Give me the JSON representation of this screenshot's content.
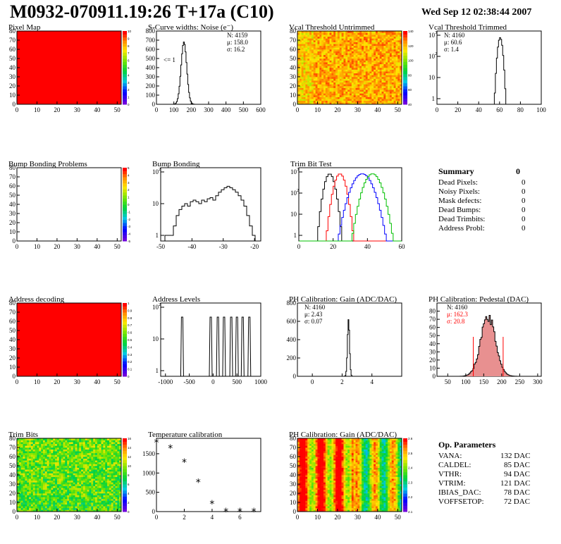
{
  "header": {
    "title": "M0932-070911.19:26 T+17a (C10)",
    "date": "Wed Sep 12 02:38:44 2007"
  },
  "colors": {
    "frame": "#000000",
    "red": "#ff0000",
    "green": "#00c000",
    "blue": "#0000ff",
    "pedestal_fill": "#e89090"
  },
  "chart_data": [
    {
      "id": "pixel_map",
      "type": "heatmap",
      "title": "Pixel Map",
      "xticks": [
        0,
        10,
        20,
        30,
        40,
        50
      ],
      "yticks": [
        0,
        10,
        20,
        30,
        40,
        50,
        60,
        70,
        80
      ],
      "colorbar_ticks": [
        "0",
        "1",
        "2",
        "3",
        "4",
        "5",
        "6",
        "7",
        "8",
        "9",
        "10"
      ],
      "uniform_value": 10
    },
    {
      "id": "scurve",
      "type": "histogram",
      "title": "S-Curve widths: Noise (e⁻)",
      "xticks": [
        "0",
        "100",
        "200",
        "300",
        "400",
        "500",
        "600"
      ],
      "xlim": [
        0,
        600
      ],
      "stats": [
        "N: 4159",
        "μ: 158.0",
        "σ: 16.2"
      ],
      "annotation": "<= 1",
      "peak": {
        "mean": 158,
        "sigma": 16.2,
        "height": 680
      },
      "ylim": [
        0,
        800
      ],
      "yticks": [
        "0",
        "100",
        "200",
        "300",
        "400",
        "500",
        "600",
        "700",
        "800"
      ]
    },
    {
      "id": "vcal_untrimmed",
      "type": "heatmap",
      "title": "Vcal Threshold Untrimmed",
      "xticks": [
        0,
        10,
        20,
        30,
        40,
        50
      ],
      "yticks": [
        0,
        10,
        20,
        30,
        40,
        50,
        60,
        70,
        80
      ],
      "colorbar_ticks": [
        "40",
        "60",
        "80",
        "100",
        "120",
        "140"
      ]
    },
    {
      "id": "vcal_trimmed",
      "type": "histogram",
      "title": "Vcal Threshold Trimmed",
      "yscale": "log",
      "xticks": [
        "0",
        "20",
        "40",
        "60",
        "80",
        "100"
      ],
      "xlim": [
        0,
        100
      ],
      "stats": [
        "N: 4160",
        "μ: 60.6",
        "σ: 1.4"
      ],
      "peak": {
        "mean": 60.6,
        "sigma": 1.4,
        "height": 1500
      }
    },
    {
      "id": "bump_problems",
      "type": "heatmap",
      "title": "Bump Bonding Problems",
      "xticks": [
        0,
        10,
        20,
        30,
        40,
        50
      ],
      "yticks": [
        0,
        10,
        20,
        30,
        40,
        50,
        60,
        70,
        80
      ],
      "colorbar_ticks": [
        "-5",
        "-4",
        "-3",
        "-2",
        "-1",
        "0",
        "1",
        "2",
        "3",
        "4",
        "5"
      ],
      "empty": true
    },
    {
      "id": "bump_bonding",
      "type": "histogram",
      "title": "Bump Bonding",
      "yscale": "log",
      "xticks": [
        "-50",
        "-40",
        "-30",
        "-20"
      ],
      "xlim": [
        -50,
        -18
      ],
      "values": [
        1,
        1,
        1,
        3,
        10,
        20,
        30,
        40,
        30,
        50,
        60,
        50,
        40,
        60,
        50,
        70,
        80,
        60,
        100,
        150,
        200,
        250,
        300,
        250,
        200,
        150,
        100,
        60,
        30,
        10,
        3,
        1
      ]
    },
    {
      "id": "trim_bit_test",
      "type": "line",
      "title": "Trim Bit Test",
      "yscale": "log",
      "xticks": [
        "0",
        "20",
        "40",
        "60"
      ],
      "xlim": [
        0,
        60
      ],
      "series": [
        {
          "color": "#000000",
          "mean": 18,
          "sigma": 1.8
        },
        {
          "color": "#ff0000",
          "mean": 24,
          "sigma": 2
        },
        {
          "color": "#0000ff",
          "mean": 37,
          "sigma": 3.5
        },
        {
          "color": "#00c000",
          "mean": 43,
          "sigma": 3
        }
      ]
    },
    {
      "id": "summary",
      "type": "table",
      "title": "Summary",
      "title_value": "0",
      "rows": [
        [
          "Dead Pixels:",
          "0"
        ],
        [
          "Noisy Pixels:",
          "0"
        ],
        [
          "Mask defects:",
          "0"
        ],
        [
          "Dead Bumps:",
          "0"
        ],
        [
          "Dead Trimbits:",
          "0"
        ],
        [
          "Address Probl:",
          "0"
        ]
      ]
    },
    {
      "id": "address_decoding",
      "type": "heatmap",
      "title": "Address decoding",
      "xticks": [
        0,
        10,
        20,
        30,
        40,
        50
      ],
      "yticks": [
        0,
        10,
        20,
        30,
        40,
        50,
        60,
        70,
        80
      ],
      "colorbar_ticks": [
        "0",
        "0.1",
        "0.2",
        "0.3",
        "0.4",
        "0.5",
        "0.6",
        "0.7",
        "0.8",
        "0.9",
        "1"
      ],
      "uniform_value": 1
    },
    {
      "id": "address_levels",
      "type": "histogram",
      "title": "Address Levels",
      "yscale": "log",
      "xticks": [
        "-1000",
        "-500",
        "0",
        "500",
        "1000"
      ],
      "xlim": [
        -1100,
        1000
      ],
      "peaks": [
        -650,
        -50,
        100,
        230,
        380,
        500,
        620,
        760
      ]
    },
    {
      "id": "ph_gain",
      "type": "histogram",
      "title": "PH Calibration: Gain (ADC/DAC)",
      "xticks": [
        "0",
        "2",
        "4"
      ],
      "xlim": [
        -1,
        6
      ],
      "ylim": [
        0,
        800
      ],
      "yticks": [
        "0",
        "200",
        "400",
        "600",
        "800"
      ],
      "stats": [
        "N: 4160",
        "μ: 2.43",
        "σ: 0.07"
      ],
      "peak": {
        "mean": 2.43,
        "sigma": 0.07,
        "height": 620
      }
    },
    {
      "id": "ph_pedestal",
      "type": "histogram",
      "title": "PH Calibration: Pedestal (DAC)",
      "xticks": [
        "50",
        "100",
        "150",
        "200",
        "250",
        "300"
      ],
      "xlim": [
        20,
        310
      ],
      "ylim": [
        0,
        90
      ],
      "yticks": [
        "0",
        "10",
        "20",
        "30",
        "40",
        "50",
        "60",
        "70",
        "80"
      ],
      "stats": [
        "N: 4160",
        "μ: 162.3",
        "σ: 20.8"
      ],
      "peak": {
        "mean": 162.3,
        "sigma": 20.8,
        "height": 72
      },
      "cut_lines": [
        121,
        204
      ]
    },
    {
      "id": "trim_bits",
      "type": "heatmap",
      "title": "Trim Bits",
      "xticks": [
        0,
        10,
        20,
        30,
        40,
        50
      ],
      "yticks": [
        0,
        10,
        20,
        30,
        40,
        50,
        60,
        70,
        80
      ],
      "colorbar_ticks": [
        "0",
        "2",
        "4",
        "6",
        "8",
        "10",
        "12",
        "14",
        "16"
      ]
    },
    {
      "id": "temp_calibration",
      "type": "scatter",
      "title": "Temperature calibration",
      "xticks": [
        "0",
        "2",
        "4",
        "6"
      ],
      "xlim": [
        0,
        7.5
      ],
      "ylim": [
        0,
        1900
      ],
      "yticks": [
        "0",
        "500",
        "1000",
        "1500"
      ],
      "x": [
        0,
        1,
        2,
        3,
        4,
        5,
        6,
        7
      ],
      "y": [
        1790,
        1640,
        1280,
        760,
        200,
        0,
        0,
        0
      ]
    },
    {
      "id": "ph_gain_map",
      "type": "heatmap",
      "title": "PH Calibration: Gain (ADC/DAC)",
      "xticks": [
        0,
        10,
        20,
        30,
        40,
        50
      ],
      "yticks": [
        0,
        10,
        20,
        30,
        40,
        50,
        60,
        70,
        80
      ],
      "colorbar_ticks": [
        "2.1",
        "2.2",
        "2.3",
        "2.4",
        "2.5",
        "2.6"
      ]
    },
    {
      "id": "op_parameters",
      "type": "table",
      "title": "Op. Parameters",
      "rows": [
        [
          "VANA:",
          "132 DAC"
        ],
        [
          "CALDEL:",
          "85 DAC"
        ],
        [
          "VTHR:",
          "94 DAC"
        ],
        [
          "VTRIM:",
          "121 DAC"
        ],
        [
          "IBIAS_DAC:",
          "78 DAC"
        ],
        [
          "VOFFSETOP:",
          "72 DAC"
        ]
      ]
    }
  ]
}
